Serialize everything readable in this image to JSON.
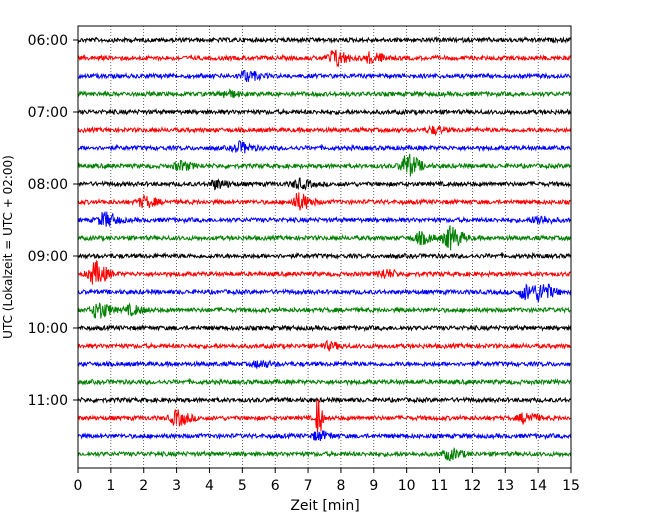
{
  "chart_data": {
    "type": "line",
    "title": "",
    "xlabel": "Zeit  [min]",
    "ylabel": "UTC (Lokalzeit = UTC + 02:00)",
    "xlim": [
      0,
      15
    ],
    "x_ticks": [
      "0",
      "1",
      "2",
      "3",
      "4",
      "5",
      "6",
      "7",
      "8",
      "9",
      "10",
      "11",
      "12",
      "13",
      "14",
      "15"
    ],
    "y_tick_labels": [
      "06:00",
      "07:00",
      "08:00",
      "09:00",
      "10:00",
      "11:00"
    ],
    "grid": "vertical dotted",
    "trace_colors": [
      "#000000",
      "#ff0000",
      "#0000ff",
      "#008000"
    ],
    "traces": [
      {
        "hour": "06:00",
        "bursts": []
      },
      {
        "hour": "06:15",
        "bursts": [
          {
            "t": 7.8,
            "amp": 8
          },
          {
            "t": 8.9,
            "amp": 5
          }
        ]
      },
      {
        "hour": "06:30",
        "bursts": [
          {
            "t": 5.1,
            "amp": 5
          }
        ]
      },
      {
        "hour": "06:45",
        "bursts": [
          {
            "t": 4.5,
            "amp": 3
          }
        ]
      },
      {
        "hour": "07:00",
        "bursts": []
      },
      {
        "hour": "07:15",
        "bursts": [
          {
            "t": 10.8,
            "amp": 3
          }
        ]
      },
      {
        "hour": "07:30",
        "bursts": [
          {
            "t": 4.9,
            "amp": 5
          }
        ]
      },
      {
        "hour": "07:45",
        "bursts": [
          {
            "t": 3.1,
            "amp": 4
          },
          {
            "t": 10.0,
            "amp": 11
          }
        ]
      },
      {
        "hour": "08:00",
        "bursts": [
          {
            "t": 4.2,
            "amp": 4
          },
          {
            "t": 6.7,
            "amp": 4
          }
        ]
      },
      {
        "hour": "08:15",
        "bursts": [
          {
            "t": 6.7,
            "amp": 8
          },
          {
            "t": 2.0,
            "amp": 5
          }
        ]
      },
      {
        "hour": "08:30",
        "bursts": [
          {
            "t": 0.8,
            "amp": 7
          },
          {
            "t": 14.0,
            "amp": 4
          }
        ]
      },
      {
        "hour": "08:45",
        "bursts": [
          {
            "t": 10.4,
            "amp": 5
          },
          {
            "t": 11.3,
            "amp": 11
          }
        ]
      },
      {
        "hour": "09:00",
        "bursts": []
      },
      {
        "hour": "09:15",
        "bursts": [
          {
            "t": 0.5,
            "amp": 11
          },
          {
            "t": 9.3,
            "amp": 4
          }
        ]
      },
      {
        "hour": "09:30",
        "bursts": [
          {
            "t": 13.6,
            "amp": 7
          },
          {
            "t": 14.1,
            "amp": 8
          }
        ]
      },
      {
        "hour": "09:45",
        "bursts": [
          {
            "t": 0.6,
            "amp": 8
          },
          {
            "t": 1.6,
            "amp": 4
          }
        ]
      },
      {
        "hour": "10:00",
        "bursts": []
      },
      {
        "hour": "10:15",
        "bursts": [
          {
            "t": 7.6,
            "amp": 3
          }
        ]
      },
      {
        "hour": "10:30",
        "bursts": [
          {
            "t": 5.5,
            "amp": 3
          }
        ]
      },
      {
        "hour": "10:45",
        "bursts": []
      },
      {
        "hour": "11:00",
        "bursts": []
      },
      {
        "hour": "11:15",
        "bursts": [
          {
            "t": 7.3,
            "amp": 28
          },
          {
            "t": 3.0,
            "amp": 7
          },
          {
            "t": 13.6,
            "amp": 5
          }
        ]
      },
      {
        "hour": "11:30",
        "bursts": [
          {
            "t": 7.3,
            "amp": 4
          }
        ]
      },
      {
        "hour": "11:45",
        "bursts": [
          {
            "t": 11.3,
            "amp": 5
          }
        ]
      }
    ]
  }
}
